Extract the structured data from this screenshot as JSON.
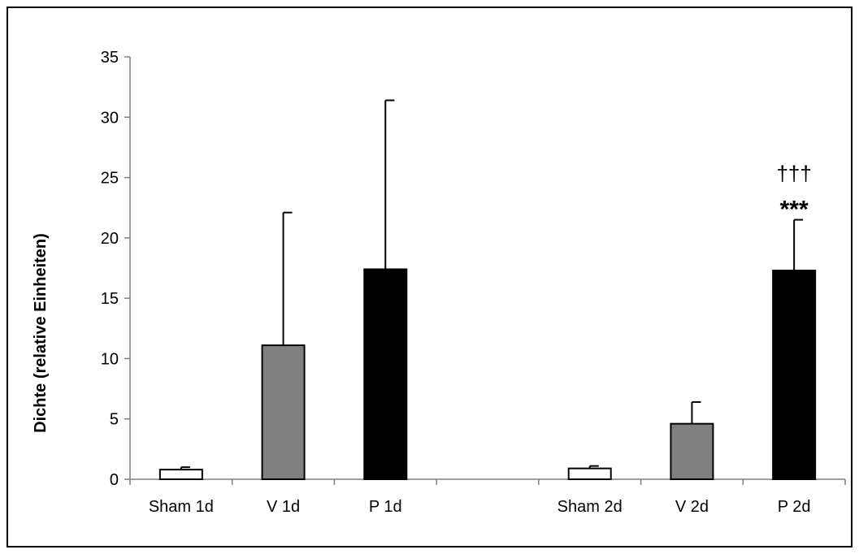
{
  "chart_data": {
    "type": "bar",
    "title": "",
    "xlabel": "",
    "ylabel": "Dichte (relative Einheiten)",
    "ylim": [
      0,
      35
    ],
    "yticks": [
      0,
      5,
      10,
      15,
      20,
      25,
      30,
      35
    ],
    "grid": false,
    "categories": [
      "Sham 1d",
      "V 1d",
      "P 1d",
      "",
      "Sham 2d",
      "V 2d",
      "P 2d"
    ],
    "values": [
      0.8,
      11.1,
      17.4,
      null,
      0.9,
      4.6,
      17.3
    ],
    "error_upper": [
      0.2,
      11.0,
      14.0,
      null,
      0.2,
      1.8,
      4.2
    ],
    "bar_colors": [
      "#ffffff",
      "#808080",
      "#000000",
      null,
      "#ffffff",
      "#808080",
      "#000000"
    ],
    "annotations": [
      {
        "category": "P 2d",
        "stars": "***",
        "daggers": "†††"
      }
    ]
  }
}
